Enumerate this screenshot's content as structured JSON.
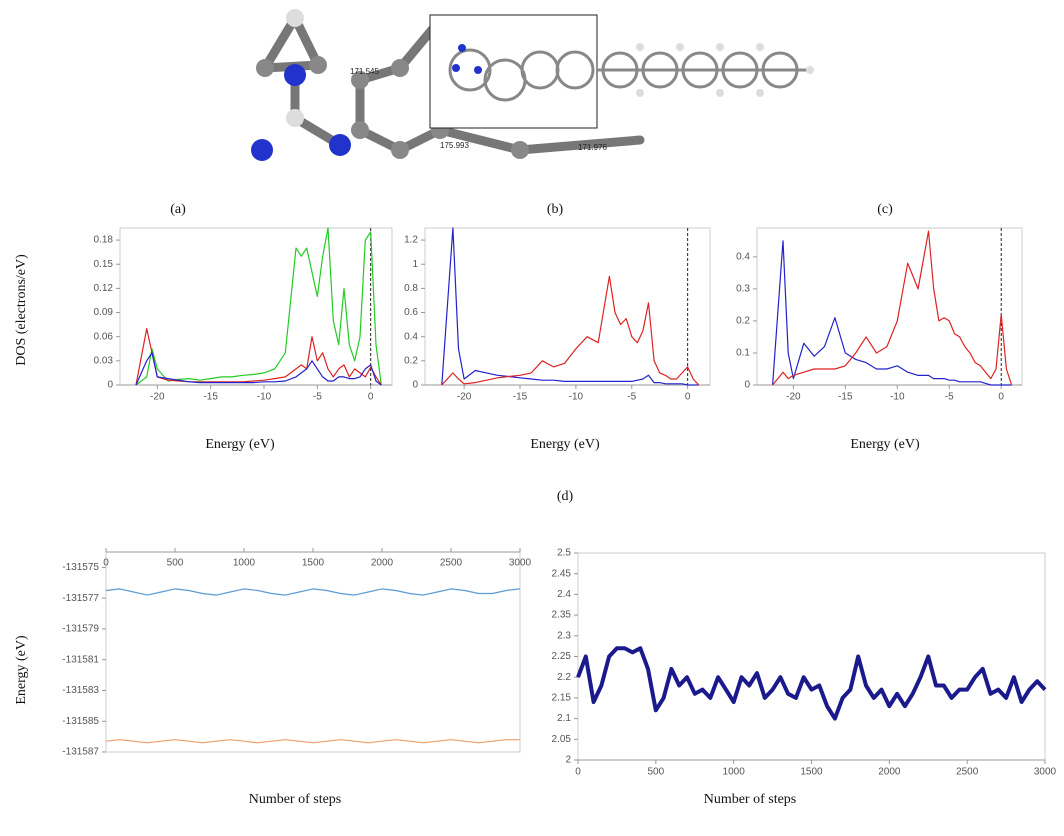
{
  "image_labels": [
    "171.545",
    "175.993",
    "171.976"
  ],
  "chart_data": [
    {
      "type": "line",
      "title": "(a)",
      "ylabel": "DOS  (electrons/eV)",
      "xlabel": "Energy  (eV)",
      "vline": 0,
      "x": [
        -22,
        -21,
        -20.5,
        -20,
        -19,
        -18,
        -17,
        -16,
        -15,
        -14,
        -13,
        -12,
        -11,
        -10,
        -9,
        -8,
        -7,
        -6.5,
        -6,
        -5.5,
        -5,
        -4.5,
        -4,
        -3.5,
        -3,
        -2.5,
        -2,
        -1.5,
        -1,
        -0.5,
        0,
        0.5,
        1
      ],
      "xlim": [
        -23.5,
        2
      ],
      "xticks": [
        -20,
        -15,
        -10,
        -5,
        0
      ],
      "ylim": [
        0,
        0.195
      ],
      "yticks": [
        0,
        0.03,
        0.06,
        0.09,
        0.12,
        0.15,
        0.18
      ],
      "series": [
        {
          "color": "#22cc22",
          "values": [
            0,
            0.01,
            0.045,
            0.02,
            0.005,
            0.007,
            0.008,
            0.006,
            0.008,
            0.01,
            0.01,
            0.012,
            0.013,
            0.015,
            0.02,
            0.04,
            0.17,
            0.16,
            0.17,
            0.14,
            0.11,
            0.16,
            0.195,
            0.08,
            0.05,
            0.12,
            0.05,
            0.03,
            0.06,
            0.18,
            0.19,
            0.05,
            0
          ]
        },
        {
          "color": "#dd2222",
          "values": [
            0,
            0.07,
            0.04,
            0.01,
            0.006,
            0.005,
            0.004,
            0.004,
            0.004,
            0.004,
            0.004,
            0.004,
            0.005,
            0.006,
            0.008,
            0.01,
            0.02,
            0.025,
            0.02,
            0.06,
            0.03,
            0.04,
            0.02,
            0.01,
            0.02,
            0.025,
            0.01,
            0.02,
            0.015,
            0.01,
            0.022,
            0.01,
            0
          ]
        },
        {
          "color": "#2222cc",
          "values": [
            0,
            0.03,
            0.04,
            0.01,
            0.008,
            0.006,
            0.004,
            0.003,
            0.003,
            0.003,
            0.003,
            0.003,
            0.003,
            0.004,
            0.004,
            0.005,
            0.01,
            0.015,
            0.02,
            0.03,
            0.02,
            0.01,
            0.005,
            0.005,
            0.01,
            0.01,
            0.008,
            0.008,
            0.01,
            0.02,
            0.025,
            0.005,
            0
          ]
        }
      ]
    },
    {
      "type": "line",
      "title": "(b)",
      "xlabel": "Energy  (eV)",
      "vline": 0,
      "x": [
        -22,
        -21,
        -20.5,
        -20,
        -19,
        -18,
        -17,
        -16,
        -15,
        -14,
        -13,
        -12,
        -11,
        -10,
        -9,
        -8,
        -7,
        -6.5,
        -6,
        -5.5,
        -5,
        -4.5,
        -4,
        -3.5,
        -3,
        -2.5,
        -2,
        -1.5,
        -1,
        -0.5,
        0,
        0.5,
        1
      ],
      "xlim": [
        -23.5,
        2
      ],
      "xticks": [
        -20,
        -15,
        -10,
        -5,
        0
      ],
      "ylim": [
        0,
        1.3
      ],
      "yticks": [
        0,
        0.2,
        0.4,
        0.6,
        0.8,
        1,
        1.2
      ],
      "series": [
        {
          "color": "#2222cc",
          "values": [
            0,
            1.3,
            0.3,
            0.05,
            0.12,
            0.1,
            0.08,
            0.07,
            0.06,
            0.05,
            0.04,
            0.04,
            0.03,
            0.03,
            0.03,
            0.03,
            0.03,
            0.03,
            0.03,
            0.03,
            0.03,
            0.04,
            0.05,
            0.08,
            0.02,
            0.02,
            0.01,
            0.01,
            0.01,
            0.01,
            0,
            0,
            0
          ]
        },
        {
          "color": "#dd2222",
          "values": [
            0,
            0.1,
            0.05,
            0.01,
            0.02,
            0.04,
            0.06,
            0.07,
            0.08,
            0.1,
            0.2,
            0.15,
            0.18,
            0.3,
            0.4,
            0.35,
            0.9,
            0.6,
            0.5,
            0.55,
            0.4,
            0.35,
            0.45,
            0.68,
            0.2,
            0.1,
            0.08,
            0.05,
            0.05,
            0.1,
            0.15,
            0.05,
            0
          ]
        }
      ]
    },
    {
      "type": "line",
      "title": "(c)",
      "xlabel": "Energy  (eV)",
      "vline": 0,
      "x": [
        -22,
        -21,
        -20.5,
        -20,
        -19,
        -18,
        -17,
        -16,
        -15,
        -14,
        -13,
        -12,
        -11,
        -10,
        -9,
        -8,
        -7,
        -6.5,
        -6,
        -5.5,
        -5,
        -4.5,
        -4,
        -3.5,
        -3,
        -2.5,
        -2,
        -1.5,
        -1,
        -0.5,
        0,
        0.5,
        1
      ],
      "xlim": [
        -23.5,
        2
      ],
      "xticks": [
        -20,
        -15,
        -10,
        -5,
        0
      ],
      "ylim": [
        0,
        0.49
      ],
      "yticks": [
        0,
        0.1,
        0.2,
        0.3,
        0.4
      ],
      "series": [
        {
          "color": "#2222cc",
          "values": [
            0,
            0.45,
            0.1,
            0.02,
            0.13,
            0.09,
            0.12,
            0.21,
            0.1,
            0.08,
            0.07,
            0.05,
            0.05,
            0.06,
            0.04,
            0.03,
            0.03,
            0.02,
            0.02,
            0.02,
            0.015,
            0.015,
            0.01,
            0.01,
            0.01,
            0.01,
            0.01,
            0.005,
            0,
            0,
            0,
            0,
            0
          ]
        },
        {
          "color": "#dd2222",
          "values": [
            0,
            0.04,
            0.02,
            0.03,
            0.04,
            0.05,
            0.05,
            0.05,
            0.06,
            0.1,
            0.15,
            0.1,
            0.12,
            0.2,
            0.38,
            0.3,
            0.48,
            0.3,
            0.2,
            0.21,
            0.2,
            0.16,
            0.15,
            0.12,
            0.1,
            0.07,
            0.06,
            0.04,
            0.02,
            0.05,
            0.22,
            0.05,
            0
          ]
        }
      ]
    },
    {
      "type": "line",
      "title": "(d)",
      "ylabel": "Energy  (eV)",
      "xlabel": "Number  of  steps",
      "xaxis": "top",
      "x": [
        0,
        100,
        200,
        300,
        400,
        500,
        600,
        700,
        800,
        900,
        1000,
        1100,
        1200,
        1300,
        1400,
        1500,
        1600,
        1700,
        1800,
        1900,
        2000,
        2100,
        2200,
        2300,
        2400,
        2500,
        2600,
        2700,
        2800,
        2900,
        3000
      ],
      "xlim": [
        0,
        3000
      ],
      "xticks": [
        0,
        500,
        1000,
        1500,
        2000,
        2500,
        3000
      ],
      "ylim": [
        -131587,
        -131574
      ],
      "yticks": [
        -131575,
        -131577,
        -131579,
        -131581,
        -131583,
        -131585,
        -131587
      ],
      "series": [
        {
          "color": "#5b9bd5",
          "values": [
            -131576.5,
            -131576.4,
            -131576.6,
            -131576.8,
            -131576.6,
            -131576.4,
            -131576.5,
            -131576.7,
            -131576.8,
            -131576.6,
            -131576.4,
            -131576.5,
            -131576.7,
            -131576.8,
            -131576.6,
            -131576.4,
            -131576.5,
            -131576.7,
            -131576.8,
            -131576.6,
            -131576.4,
            -131576.5,
            -131576.7,
            -131576.8,
            -131576.6,
            -131576.4,
            -131576.5,
            -131576.7,
            -131576.7,
            -131576.5,
            -131576.4
          ]
        },
        {
          "color": "#ed9e6a",
          "values": [
            -131586.3,
            -131586.2,
            -131586.3,
            -131586.4,
            -131586.3,
            -131586.2,
            -131586.3,
            -131586.4,
            -131586.3,
            -131586.2,
            -131586.3,
            -131586.4,
            -131586.3,
            -131586.2,
            -131586.3,
            -131586.4,
            -131586.3,
            -131586.2,
            -131586.3,
            -131586.4,
            -131586.3,
            -131586.2,
            -131586.3,
            -131586.4,
            -131586.3,
            -131586.2,
            -131586.3,
            -131586.4,
            -131586.3,
            -131586.2,
            -131586.2
          ]
        }
      ]
    },
    {
      "type": "line",
      "xlabel": "Number  of  steps",
      "line_width": 4,
      "x": [
        0,
        50,
        100,
        150,
        200,
        250,
        300,
        350,
        400,
        450,
        500,
        550,
        600,
        650,
        700,
        750,
        800,
        850,
        900,
        950,
        1000,
        1050,
        1100,
        1150,
        1200,
        1250,
        1300,
        1350,
        1400,
        1450,
        1500,
        1550,
        1600,
        1650,
        1700,
        1750,
        1800,
        1850,
        1900,
        1950,
        2000,
        2050,
        2100,
        2150,
        2200,
        2250,
        2300,
        2350,
        2400,
        2450,
        2500,
        2550,
        2600,
        2650,
        2700,
        2750,
        2800,
        2850,
        2900,
        2950,
        3000
      ],
      "xlim": [
        0,
        3000
      ],
      "xticks": [
        0,
        500,
        1000,
        1500,
        2000,
        2500,
        3000
      ],
      "ylim": [
        2,
        2.5
      ],
      "yticks": [
        2,
        2.05,
        2.1,
        2.15,
        2.2,
        2.25,
        2.3,
        2.35,
        2.4,
        2.45,
        2.5
      ],
      "series": [
        {
          "color": "#1a1a8c",
          "values": [
            2.2,
            2.25,
            2.14,
            2.18,
            2.25,
            2.27,
            2.27,
            2.26,
            2.27,
            2.22,
            2.12,
            2.15,
            2.22,
            2.18,
            2.2,
            2.16,
            2.17,
            2.15,
            2.2,
            2.17,
            2.14,
            2.2,
            2.18,
            2.21,
            2.15,
            2.17,
            2.2,
            2.16,
            2.15,
            2.2,
            2.17,
            2.18,
            2.13,
            2.1,
            2.15,
            2.17,
            2.25,
            2.18,
            2.15,
            2.17,
            2.13,
            2.16,
            2.13,
            2.16,
            2.2,
            2.25,
            2.18,
            2.18,
            2.15,
            2.17,
            2.17,
            2.2,
            2.22,
            2.16,
            2.17,
            2.15,
            2.2,
            2.14,
            2.17,
            2.19,
            2.17
          ]
        }
      ]
    }
  ]
}
